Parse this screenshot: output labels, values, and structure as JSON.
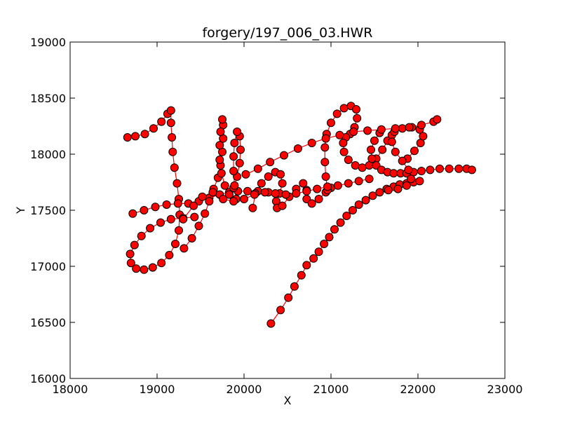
{
  "chart_data": {
    "type": "line",
    "title": "forgery/197_006_03.HWR",
    "xlabel": "X",
    "ylabel": "Y",
    "xlim": [
      18000,
      23000
    ],
    "ylim": [
      16000,
      19000
    ],
    "x_ticks": [
      18000,
      19000,
      20000,
      21000,
      22000,
      23000
    ],
    "y_ticks": [
      16000,
      16500,
      17000,
      17500,
      18000,
      18500,
      19000
    ],
    "x_tick_labels": [
      "18000",
      "19000",
      "20000",
      "21000",
      "22000",
      "23000"
    ],
    "y_tick_labels": [
      "16000",
      "16500",
      "17000",
      "17500",
      "18000",
      "18500",
      "19000"
    ],
    "grid": false,
    "legend": "none",
    "line_color": "#ff0000",
    "marker_color": "#ff0000",
    "marker_edge_color": "#000000",
    "series": [
      {
        "points": [
          [
            20310,
            16490
          ],
          [
            20420,
            16610
          ],
          [
            20510,
            16720
          ],
          [
            20580,
            16820
          ],
          [
            20660,
            16920
          ],
          [
            20720,
            17010
          ],
          [
            20800,
            17070
          ],
          [
            20860,
            17130
          ],
          [
            20920,
            17200
          ],
          [
            20980,
            17260
          ],
          [
            21040,
            17330
          ],
          [
            21110,
            17390
          ],
          [
            21180,
            17450
          ],
          [
            21250,
            17500
          ],
          [
            21320,
            17550
          ],
          [
            21400,
            17590
          ],
          [
            21480,
            17630
          ],
          [
            21560,
            17660
          ],
          [
            21640,
            17690
          ],
          [
            21720,
            17710
          ],
          [
            21790,
            17730
          ],
          [
            21870,
            17740
          ],
          [
            21950,
            17750
          ],
          [
            22020,
            17760
          ]
        ]
      },
      {
        "points": [
          [
            18660,
            18150
          ],
          [
            18750,
            18160
          ],
          [
            18860,
            18180
          ],
          [
            18960,
            18230
          ],
          [
            19050,
            18290
          ],
          [
            19120,
            18360
          ],
          [
            19160,
            18390
          ],
          [
            19160,
            18280
          ],
          [
            19170,
            18150
          ],
          [
            19180,
            18020
          ],
          [
            19200,
            17880
          ],
          [
            19230,
            17740
          ],
          [
            19250,
            17600
          ],
          [
            19260,
            17460
          ],
          [
            19250,
            17320
          ],
          [
            19210,
            17200
          ],
          [
            19140,
            17100
          ],
          [
            19050,
            17030
          ],
          [
            18950,
            16990
          ],
          [
            18850,
            16970
          ],
          [
            18760,
            16980
          ],
          [
            18700,
            17030
          ],
          [
            18690,
            17110
          ],
          [
            18740,
            17190
          ],
          [
            18820,
            17270
          ],
          [
            18920,
            17340
          ],
          [
            19040,
            17390
          ],
          [
            19160,
            17420
          ],
          [
            19300,
            17430
          ],
          [
            19430,
            17440
          ]
        ]
      },
      {
        "points": [
          [
            18720,
            17470
          ],
          [
            18850,
            17500
          ],
          [
            18980,
            17530
          ],
          [
            19110,
            17550
          ],
          [
            19240,
            17560
          ],
          [
            19360,
            17560
          ],
          [
            19480,
            17580
          ],
          [
            19600,
            17610
          ],
          [
            19720,
            17640
          ],
          [
            19830,
            17660
          ],
          [
            19930,
            17670
          ],
          [
            20040,
            17670
          ],
          [
            20160,
            17670
          ],
          [
            20280,
            17660
          ]
        ]
      },
      {
        "points": [
          [
            19310,
            17160
          ],
          [
            19400,
            17250
          ],
          [
            19480,
            17360
          ],
          [
            19550,
            17470
          ],
          [
            19600,
            17580
          ],
          [
            19650,
            17690
          ],
          [
            19700,
            17790
          ],
          [
            19730,
            17900
          ],
          [
            19750,
            18020
          ],
          [
            19760,
            18140
          ],
          [
            19760,
            18260
          ],
          [
            19750,
            18310
          ],
          [
            19730,
            18200
          ],
          [
            19720,
            18080
          ],
          [
            19720,
            17950
          ],
          [
            19740,
            17830
          ],
          [
            19780,
            17720
          ],
          [
            19830,
            17640
          ],
          [
            19880,
            17700
          ],
          [
            19920,
            17800
          ],
          [
            19950,
            17920
          ],
          [
            19960,
            18040
          ],
          [
            19950,
            18160
          ],
          [
            19920,
            18200
          ],
          [
            19890,
            18100
          ],
          [
            19880,
            17980
          ],
          [
            19880,
            17850
          ],
          [
            19890,
            17720
          ],
          [
            19910,
            17600
          ]
        ]
      },
      {
        "points": [
          [
            20100,
            17520
          ],
          [
            20130,
            17650
          ],
          [
            20200,
            17740
          ],
          [
            20280,
            17800
          ],
          [
            20360,
            17840
          ],
          [
            20420,
            17820
          ],
          [
            20440,
            17740
          ],
          [
            20410,
            17650
          ],
          [
            20370,
            17580
          ],
          [
            20380,
            17520
          ],
          [
            20440,
            17540
          ],
          [
            20520,
            17620
          ],
          [
            20600,
            17690
          ],
          [
            20680,
            17740
          ],
          [
            20720,
            17680
          ],
          [
            20720,
            17600
          ],
          [
            20780,
            17560
          ],
          [
            20860,
            17600
          ],
          [
            20940,
            17660
          ],
          [
            21000,
            17700
          ]
        ]
      },
      {
        "points": [
          [
            20960,
            17680
          ],
          [
            20940,
            17800
          ],
          [
            20930,
            17930
          ],
          [
            20930,
            18060
          ],
          [
            20950,
            18180
          ],
          [
            21000,
            18280
          ],
          [
            21070,
            18360
          ],
          [
            21150,
            18410
          ],
          [
            21230,
            18430
          ],
          [
            21290,
            18400
          ],
          [
            21300,
            18320
          ],
          [
            21270,
            18240
          ],
          [
            21220,
            18180
          ],
          [
            21170,
            18150
          ],
          [
            21140,
            18100
          ],
          [
            21150,
            18020
          ],
          [
            21200,
            17950
          ],
          [
            21280,
            17900
          ],
          [
            21360,
            17880
          ],
          [
            21440,
            17900
          ],
          [
            21520,
            17960
          ],
          [
            21590,
            18040
          ],
          [
            21650,
            18120
          ],
          [
            21700,
            18170
          ]
        ]
      },
      {
        "points": [
          [
            21560,
            18190
          ],
          [
            21500,
            18120
          ],
          [
            21460,
            18040
          ],
          [
            21470,
            17960
          ],
          [
            21520,
            17900
          ],
          [
            21580,
            17860
          ],
          [
            21650,
            17840
          ],
          [
            21720,
            17830
          ],
          [
            21800,
            17830
          ],
          [
            21870,
            17830
          ],
          [
            21950,
            17840
          ],
          [
            22040,
            17850
          ],
          [
            22140,
            17860
          ],
          [
            22250,
            17870
          ],
          [
            22360,
            17870
          ],
          [
            22470,
            17870
          ],
          [
            22560,
            17870
          ],
          [
            22620,
            17860
          ]
        ]
      },
      {
        "points": [
          [
            21880,
            17960
          ],
          [
            21960,
            18030
          ],
          [
            22030,
            18100
          ],
          [
            22060,
            18160
          ],
          [
            22020,
            18220
          ],
          [
            21930,
            18240
          ],
          [
            21820,
            18230
          ],
          [
            21730,
            18200
          ],
          [
            21700,
            18110
          ],
          [
            21740,
            18020
          ],
          [
            21820,
            17940
          ],
          [
            21890,
            17860
          ],
          [
            21920,
            17780
          ],
          [
            21870,
            17720
          ],
          [
            21770,
            17690
          ],
          [
            21660,
            17680
          ]
        ]
      },
      {
        "points": [
          [
            20020,
            17820
          ],
          [
            20160,
            17870
          ],
          [
            20300,
            17930
          ],
          [
            20460,
            17990
          ],
          [
            20620,
            18050
          ],
          [
            20780,
            18100
          ],
          [
            20940,
            18140
          ],
          [
            21100,
            18170
          ],
          [
            21260,
            18200
          ],
          [
            21420,
            18210
          ],
          [
            21580,
            18220
          ],
          [
            21740,
            18230
          ],
          [
            21900,
            18240
          ],
          [
            22040,
            18260
          ],
          [
            22180,
            18290
          ],
          [
            22220,
            18310
          ]
        ]
      },
      {
        "points": [
          [
            19300,
            17420
          ],
          [
            19420,
            17540
          ],
          [
            19520,
            17620
          ],
          [
            19640,
            17660
          ],
          [
            19760,
            17600
          ],
          [
            19880,
            17580
          ],
          [
            20000,
            17600
          ],
          [
            20120,
            17640
          ],
          [
            20240,
            17660
          ],
          [
            20360,
            17650
          ],
          [
            20480,
            17640
          ],
          [
            20600,
            17650
          ],
          [
            20720,
            17670
          ],
          [
            20840,
            17690
          ],
          [
            20960,
            17710
          ],
          [
            21080,
            17720
          ],
          [
            21200,
            17740
          ],
          [
            21320,
            17760
          ],
          [
            21440,
            17780
          ]
        ]
      }
    ]
  }
}
